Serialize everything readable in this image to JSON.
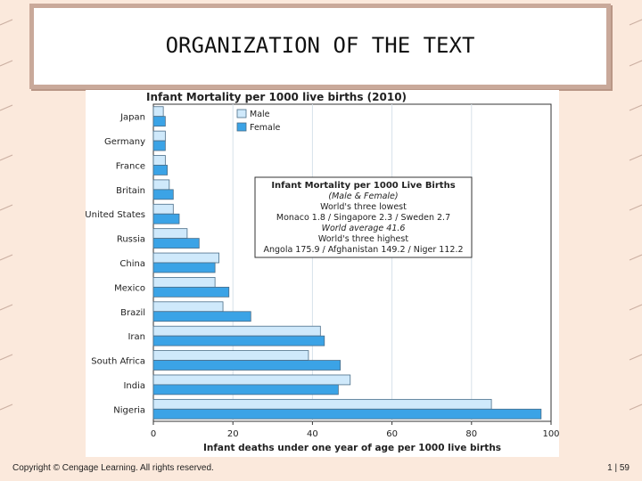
{
  "slide": {
    "title": "ORGANIZATION OF THE TEXT",
    "footer_copyright": "Copyright © Cengage Learning. All rights reserved.",
    "page_number": "1 | 59"
  },
  "colors": {
    "background": "#fbe9dc",
    "male": "#cfe9fb",
    "female": "#3ba3e6",
    "bar_stroke": "#4a6d88"
  },
  "chart_data": {
    "type": "bar",
    "orientation": "horizontal",
    "title": "Infant Mortality per 1000 live births (2010)",
    "xlabel": "Infant deaths under one year of age per 1000 live births",
    "xlim": [
      0,
      100
    ],
    "xticks": [
      0,
      20,
      40,
      60,
      80,
      100
    ],
    "categories": [
      "Japan",
      "Germany",
      "France",
      "Britain",
      "United States",
      "Russia",
      "China",
      "Mexico",
      "Brazil",
      "Iran",
      "South Africa",
      "India",
      "Nigeria"
    ],
    "series": [
      {
        "name": "Male",
        "values": [
          2.5,
          3,
          3,
          4,
          5,
          8.5,
          16.5,
          15.5,
          17.5,
          42,
          39,
          49.5,
          85
        ]
      },
      {
        "name": "Female",
        "values": [
          3,
          3,
          3.5,
          5,
          6.5,
          11.5,
          15.5,
          19,
          24.5,
          43,
          47,
          46.5,
          97.5
        ]
      }
    ],
    "legend_position": "top-left",
    "annotation": {
      "lines": [
        "Infant Mortality per 1000 Live Births",
        "(Male & Female)",
        "World's three lowest",
        "Monaco 1.8 / Singapore 2.3 / Sweden 2.7",
        "World average 41.6",
        "World's three highest",
        "Angola 175.9 / Afghanistan 149.2 / Niger 112.2"
      ]
    }
  }
}
